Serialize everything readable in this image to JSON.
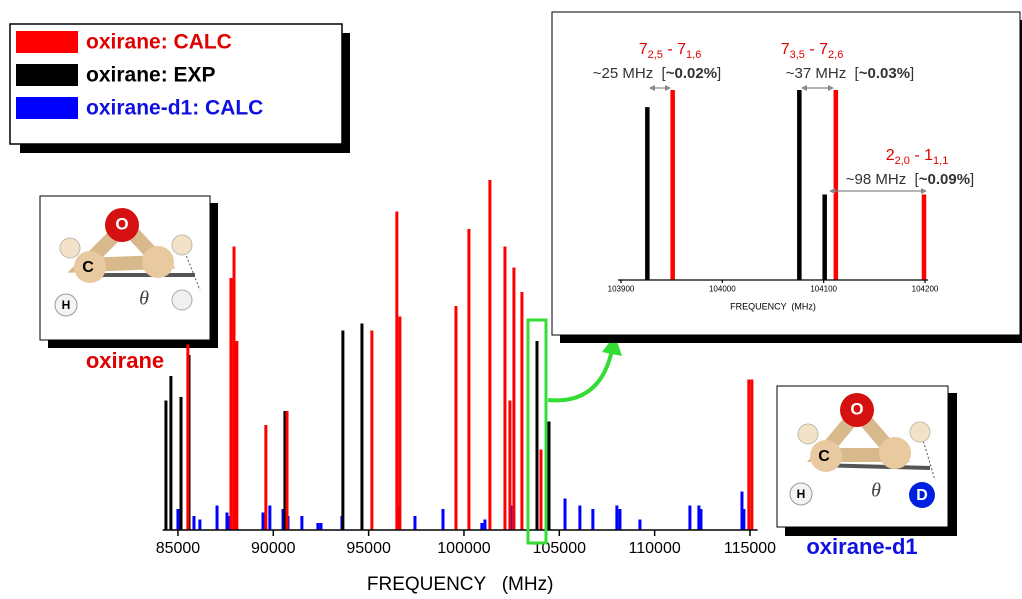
{
  "chart_data": [
    {
      "type": "stick",
      "x_label": "FREQUENCY   (MHz)",
      "xlim": [
        84200,
        115400
      ],
      "xticks": [
        85000,
        90000,
        95000,
        100000,
        105000,
        110000,
        115000
      ],
      "ylim": [
        0,
        100
      ],
      "series": [
        {
          "name": "oxirane-d1: CALC",
          "color": "#0000ff",
          "x": [
            85000,
            85840,
            86150,
            87050,
            87570,
            87680,
            89460,
            89820,
            90510,
            90660,
            90770,
            91500,
            92340,
            92500,
            93600,
            96540,
            97430,
            98900,
            100940,
            101100,
            102460,
            105300,
            106080,
            106760,
            108020,
            108180,
            109230,
            111850,
            112320,
            112430,
            114580,
            114680
          ],
          "values": [
            6,
            4,
            3,
            7,
            5,
            4,
            5,
            7,
            6,
            7,
            4,
            4,
            2,
            2,
            4,
            7,
            4,
            6,
            2,
            3,
            7,
            9,
            7,
            6,
            7,
            6,
            3,
            7,
            7,
            6,
            11,
            6
          ]
        },
        {
          "name": "oxirane: EXP",
          "color": "#000000",
          "x": [
            84370,
            84630,
            85160,
            85580,
            90610,
            93650,
            94650,
            103830,
            104460
          ],
          "values": [
            37,
            44,
            38,
            50,
            34,
            57,
            59,
            54,
            31
          ]
        },
        {
          "name": "oxirane: CALC",
          "color": "#ff0000",
          "x": [
            85520,
            87780,
            87940,
            88090,
            89610,
            90720,
            95170,
            96480,
            96640,
            99580,
            100260,
            101360,
            102150,
            102410,
            102620,
            103040,
            104040,
            114940,
            115100
          ],
          "values": [
            53,
            72,
            81,
            54,
            30,
            34,
            57,
            91,
            61,
            64,
            86,
            100,
            81,
            37,
            75,
            68,
            23,
            43,
            43
          ]
        }
      ]
    },
    {
      "type": "stick",
      "x_label": "FREQUENCY  (MHz)",
      "xlim": [
        103900,
        104200
      ],
      "xticks": [
        103900,
        104000,
        104100,
        104200
      ],
      "ylim": [
        0,
        100
      ],
      "series": [
        {
          "name": "oxirane: EXP",
          "color": "#000000",
          "x": [
            103926,
            104076,
            104101
          ],
          "values": [
            91,
            100,
            45
          ]
        },
        {
          "name": "oxirane: CALC",
          "color": "#ff0000",
          "x": [
            103951,
            104112,
            104199
          ],
          "values": [
            100,
            100,
            45
          ]
        }
      ],
      "annotations": [
        {
          "transition": [
            "7",
            "2,5",
            " - 7",
            "1,6"
          ],
          "shift": [
            "~25 MHz  [",
            "~0.02%",
            "]"
          ]
        },
        {
          "transition": [
            "7",
            "3,5",
            " - 7",
            "2,6"
          ],
          "shift": [
            "~37 MHz  [",
            "~0.03%",
            "]"
          ]
        },
        {
          "transition": [
            "2",
            "2,0",
            " - 1",
            "1,1"
          ],
          "shift": [
            "~98 MHz  [",
            "~0.09%",
            "]"
          ]
        }
      ]
    }
  ],
  "molecules": [
    {
      "name": "oxirane",
      "atoms": [
        "O",
        "C",
        "H"
      ],
      "angle": "θ"
    },
    {
      "name": "oxirane-d1",
      "atoms": [
        "O",
        "C",
        "H",
        "D"
      ],
      "angle": "θ"
    }
  ]
}
